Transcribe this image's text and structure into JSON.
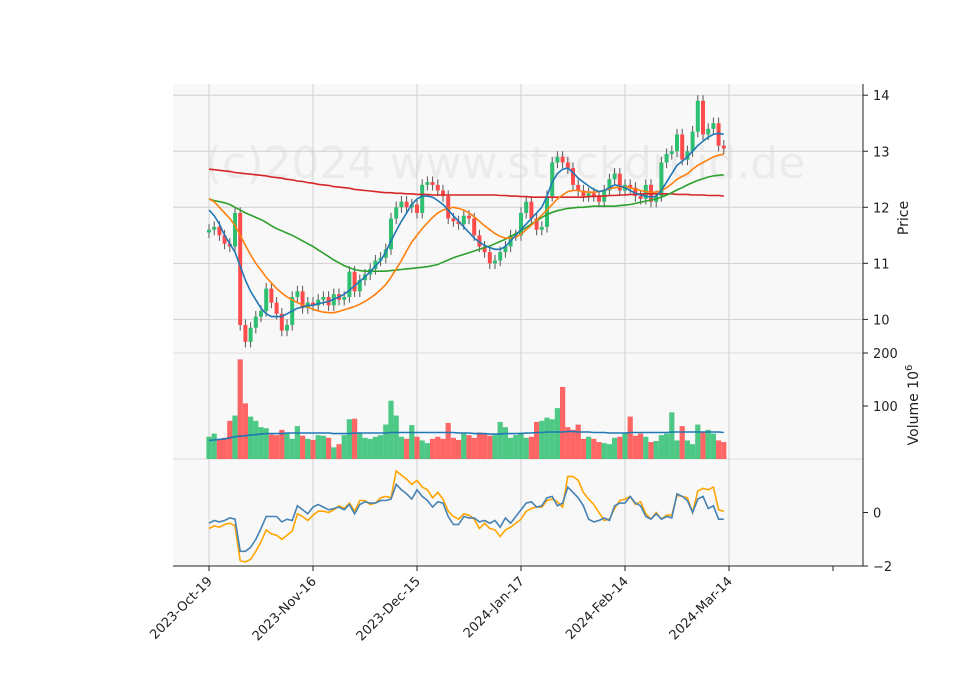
{
  "chart_data": {
    "type": "candlestick",
    "watermark": "(c)2024 www.stockdroid.de",
    "colors": {
      "up": "#2fbf71",
      "down": "#ff4b4b",
      "ma_short": "#1f77b4",
      "ma_mid": "#ff7f0e",
      "ma_long": "#2ca02c",
      "ma_200": "#d62728",
      "vol_ma": "#1f77b4",
      "osc_a": "#4682b4",
      "osc_b": "#ffa500",
      "panel_bg": "#f8f8f8",
      "grid": "#d0d0d0"
    },
    "x_tick_labels": [
      "2023-Oct-19",
      "2023-Nov-16",
      "2023-Dec-15",
      "2024-Jan-17",
      "2024-Feb-14",
      "2024-Mar-14"
    ],
    "x_tick_index": [
      0,
      20,
      40,
      60,
      80,
      100
    ],
    "price_panel": {
      "ylabel": "Price",
      "ylim": [
        9.4,
        14.2
      ],
      "yticks": [
        10,
        11,
        12,
        13,
        14
      ],
      "closes": [
        11.6,
        11.65,
        11.5,
        11.35,
        11.3,
        11.9,
        9.9,
        9.6,
        9.85,
        10.05,
        10.15,
        10.55,
        10.3,
        10.1,
        9.8,
        9.9,
        10.4,
        10.5,
        10.2,
        10.3,
        10.25,
        10.35,
        10.4,
        10.25,
        10.45,
        10.35,
        10.4,
        10.85,
        10.5,
        10.7,
        10.8,
        10.9,
        11.05,
        11.1,
        11.25,
        11.8,
        12.0,
        12.1,
        12.0,
        12.05,
        11.9,
        12.4,
        12.45,
        12.4,
        12.3,
        12.2,
        11.8,
        11.75,
        11.7,
        11.85,
        11.8,
        11.5,
        11.3,
        11.2,
        11.0,
        11.05,
        11.2,
        11.3,
        11.5,
        11.5,
        11.9,
        12.1,
        11.8,
        11.6,
        11.65,
        12.2,
        12.8,
        12.9,
        12.8,
        12.7,
        12.4,
        12.3,
        12.2,
        12.25,
        12.2,
        12.1,
        12.3,
        12.5,
        12.6,
        12.3,
        12.4,
        12.35,
        12.2,
        12.15,
        12.4,
        12.1,
        12.2,
        12.8,
        12.95,
        13.0,
        13.3,
        12.85,
        13.0,
        13.35,
        13.9,
        13.3,
        13.4,
        13.5,
        13.1,
        13.05
      ],
      "ma_short": [
        11.95,
        11.85,
        11.7,
        11.5,
        11.35,
        11.2,
        10.95,
        10.7,
        10.5,
        10.35,
        10.2,
        10.1,
        10.05,
        10.05,
        10.05,
        10.1,
        10.15,
        10.2,
        10.22,
        10.25,
        10.25,
        10.28,
        10.3,
        10.32,
        10.36,
        10.4,
        10.45,
        10.52,
        10.6,
        10.68,
        10.76,
        10.85,
        10.95,
        11.05,
        11.2,
        11.4,
        11.58,
        11.75,
        11.9,
        12.05,
        12.15,
        12.2,
        12.2,
        12.18,
        12.12,
        12.05,
        11.95,
        11.85,
        11.75,
        11.65,
        11.55,
        11.45,
        11.38,
        11.32,
        11.28,
        11.25,
        11.25,
        11.3,
        11.4,
        11.5,
        11.6,
        11.7,
        11.8,
        11.9,
        12.0,
        12.2,
        12.45,
        12.6,
        12.68,
        12.7,
        12.62,
        12.52,
        12.45,
        12.38,
        12.32,
        12.28,
        12.3,
        12.35,
        12.4,
        12.38,
        12.35,
        12.3,
        12.25,
        12.22,
        12.2,
        12.18,
        12.2,
        12.3,
        12.45,
        12.6,
        12.75,
        12.82,
        12.9,
        13.0,
        13.1,
        13.18,
        13.25,
        13.3,
        13.32,
        13.3
      ],
      "ma_mid": [
        12.15,
        12.1,
        12.0,
        11.9,
        11.8,
        11.68,
        11.5,
        11.32,
        11.15,
        11.0,
        10.88,
        10.75,
        10.65,
        10.55,
        10.47,
        10.4,
        10.35,
        10.3,
        10.26,
        10.22,
        10.18,
        10.15,
        10.13,
        10.12,
        10.12,
        10.14,
        10.17,
        10.2,
        10.23,
        10.27,
        10.32,
        10.38,
        10.45,
        10.53,
        10.62,
        10.75,
        10.9,
        11.05,
        11.22,
        11.38,
        11.5,
        11.62,
        11.72,
        11.82,
        11.9,
        11.95,
        11.98,
        12.0,
        11.98,
        11.95,
        11.9,
        11.83,
        11.75,
        11.67,
        11.6,
        11.53,
        11.48,
        11.45,
        11.45,
        11.47,
        11.52,
        11.6,
        11.68,
        11.77,
        11.86,
        11.95,
        12.05,
        12.15,
        12.22,
        12.28,
        12.3,
        12.3,
        12.28,
        12.27,
        12.27,
        12.28,
        12.3,
        12.33,
        12.35,
        12.36,
        12.36,
        12.35,
        12.32,
        12.3,
        12.28,
        12.27,
        12.27,
        12.3,
        12.35,
        12.42,
        12.5,
        12.55,
        12.6,
        12.68,
        12.75,
        12.8,
        12.85,
        12.9,
        12.93,
        12.95
      ],
      "ma_long": [
        12.15,
        12.12,
        12.1,
        12.08,
        12.05,
        12.0,
        11.95,
        11.9,
        11.86,
        11.82,
        11.78,
        11.73,
        11.67,
        11.62,
        11.58,
        11.54,
        11.5,
        11.45,
        11.4,
        11.35,
        11.3,
        11.24,
        11.18,
        11.12,
        11.06,
        11.01,
        10.96,
        10.92,
        10.89,
        10.87,
        10.86,
        10.86,
        10.86,
        10.86,
        10.86,
        10.87,
        10.88,
        10.89,
        10.9,
        10.91,
        10.92,
        10.93,
        10.94,
        10.96,
        10.98,
        11.02,
        11.06,
        11.1,
        11.13,
        11.16,
        11.19,
        11.22,
        11.25,
        11.28,
        11.31,
        11.35,
        11.39,
        11.43,
        11.48,
        11.53,
        11.58,
        11.64,
        11.7,
        11.76,
        11.82,
        11.87,
        11.91,
        11.94,
        11.96,
        11.98,
        11.99,
        12.0,
        12.0,
        12.01,
        12.02,
        12.02,
        12.02,
        12.02,
        12.02,
        12.03,
        12.04,
        12.05,
        12.07,
        12.09,
        12.11,
        12.13,
        12.15,
        12.18,
        12.22,
        12.26,
        12.31,
        12.35,
        12.4,
        12.44,
        12.48,
        12.51,
        12.54,
        12.56,
        12.57,
        12.58
      ],
      "ma_200": [
        12.68,
        12.67,
        12.66,
        12.65,
        12.64,
        12.62,
        12.61,
        12.6,
        12.59,
        12.58,
        12.57,
        12.56,
        12.54,
        12.53,
        12.52,
        12.5,
        12.49,
        12.47,
        12.46,
        12.44,
        12.43,
        12.41,
        12.4,
        12.39,
        12.37,
        12.36,
        12.35,
        12.34,
        12.32,
        12.31,
        12.3,
        12.29,
        12.28,
        12.27,
        12.26,
        12.26,
        12.25,
        12.25,
        12.24,
        12.24,
        12.23,
        12.23,
        12.23,
        12.22,
        12.22,
        12.22,
        12.22,
        12.22,
        12.22,
        12.22,
        12.22,
        12.22,
        12.22,
        12.22,
        12.22,
        12.22,
        12.21,
        12.21,
        12.2,
        12.2,
        12.19,
        12.19,
        12.18,
        12.18,
        12.18,
        12.18,
        12.18,
        12.18,
        12.18,
        12.18,
        12.18,
        12.18,
        12.18,
        12.19,
        12.19,
        12.2,
        12.2,
        12.21,
        12.21,
        12.22,
        12.22,
        12.23,
        12.23,
        12.24,
        12.24,
        12.24,
        12.24,
        12.24,
        12.24,
        12.24,
        12.23,
        12.23,
        12.23,
        12.22,
        12.22,
        12.22,
        12.21,
        12.21,
        12.21,
        12.2
      ]
    },
    "volume_panel": {
      "ylabel": "Volume  10^6",
      "ylim": [
        0,
        200
      ],
      "yticks": [
        100,
        200
      ],
      "values": [
        42,
        48,
        38,
        40,
        72,
        82,
        188,
        105,
        80,
        72,
        60,
        58,
        46,
        45,
        55,
        48,
        38,
        62,
        44,
        38,
        36,
        45,
        44,
        40,
        22,
        28,
        45,
        75,
        76,
        50,
        40,
        38,
        42,
        45,
        65,
        110,
        82,
        42,
        38,
        64,
        42,
        35,
        30,
        38,
        42,
        38,
        68,
        40,
        36,
        48,
        45,
        40,
        50,
        48,
        44,
        45,
        70,
        60,
        40,
        45,
        50,
        40,
        42,
        70,
        72,
        78,
        75,
        96,
        136,
        60,
        55,
        65,
        38,
        42,
        38,
        32,
        30,
        28,
        40,
        42,
        48,
        80,
        44,
        48,
        42,
        32,
        34,
        45,
        48,
        88,
        35,
        62,
        35,
        28,
        65,
        50,
        55,
        48,
        35,
        32
      ],
      "ma": [
        35,
        36,
        37,
        38,
        40,
        42,
        43,
        44,
        45,
        46,
        47,
        48,
        48,
        48,
        48,
        49,
        49,
        49,
        49,
        49,
        49,
        49,
        49,
        49,
        48,
        48,
        48,
        48,
        49,
        49,
        49,
        49,
        49,
        49,
        49,
        50,
        50,
        50,
        50,
        50,
        50,
        50,
        50,
        50,
        50,
        50,
        50,
        50,
        49,
        49,
        49,
        48,
        48,
        48,
        47,
        47,
        47,
        48,
        48,
        48,
        48,
        49,
        49,
        50,
        50,
        51,
        51,
        51,
        51,
        52,
        52,
        51,
        51,
        51,
        50,
        50,
        50,
        49,
        49,
        49,
        49,
        50,
        50,
        50,
        50,
        50,
        50,
        50,
        50,
        51,
        51,
        51,
        51,
        51,
        51,
        51,
        51,
        51,
        51,
        50
      ]
    },
    "oscillator_panel": {
      "ylim": [
        -2,
        2
      ],
      "yticks": [
        -2,
        0
      ],
      "series_a": [
        -0.4,
        -0.3,
        -0.35,
        -0.3,
        -0.2,
        -0.25,
        -1.45,
        -1.45,
        -1.3,
        -1.0,
        -0.6,
        -0.15,
        -0.15,
        -0.15,
        -0.35,
        -0.25,
        -0.3,
        0.25,
        0.1,
        -0.05,
        0.2,
        0.3,
        0.2,
        0.1,
        0.15,
        0.2,
        0.1,
        0.3,
        -0.05,
        0.3,
        0.4,
        0.35,
        0.35,
        0.45,
        0.45,
        0.5,
        1.05,
        0.85,
        0.7,
        0.5,
        0.85,
        0.6,
        0.45,
        0.2,
        0.4,
        0.35,
        -0.15,
        -0.45,
        -0.45,
        -0.15,
        -0.2,
        -0.2,
        -0.35,
        -0.3,
        -0.4,
        -0.3,
        -0.55,
        -0.2,
        -0.4,
        -0.15,
        0.1,
        0.35,
        0.4,
        0.2,
        0.25,
        0.55,
        0.6,
        0.25,
        0.35,
        0.95,
        0.75,
        0.55,
        0.25,
        -0.25,
        -0.35,
        -0.3,
        -0.2,
        -0.3,
        0.25,
        0.35,
        0.35,
        0.6,
        0.35,
        0.25,
        -0.15,
        -0.25,
        -0.05,
        -0.25,
        -0.15,
        -0.2,
        0.7,
        0.6,
        0.45,
        0.0,
        0.5,
        0.6,
        0.15,
        0.25,
        -0.25,
        -0.25
      ],
      "series_b": [
        -0.6,
        -0.5,
        -0.55,
        -0.45,
        -0.4,
        -0.5,
        -1.8,
        -1.85,
        -1.75,
        -1.45,
        -1.1,
        -0.65,
        -0.8,
        -0.85,
        -1.0,
        -0.85,
        -0.7,
        -0.05,
        -0.15,
        -0.3,
        -0.1,
        0.05,
        0.05,
        0.0,
        0.1,
        0.25,
        0.15,
        0.35,
        0.05,
        0.45,
        0.45,
        0.3,
        0.35,
        0.55,
        0.6,
        0.55,
        1.55,
        1.4,
        1.25,
        1.05,
        1.2,
        0.95,
        0.85,
        0.55,
        0.75,
        0.5,
        0.05,
        -0.15,
        -0.25,
        -0.05,
        -0.1,
        -0.25,
        -0.6,
        -0.4,
        -0.6,
        -0.65,
        -0.9,
        -0.65,
        -0.55,
        -0.4,
        -0.25,
        0.05,
        0.15,
        0.2,
        0.2,
        0.45,
        0.5,
        0.4,
        0.2,
        1.35,
        1.35,
        1.2,
        0.75,
        0.5,
        0.3,
        0.0,
        -0.3,
        -0.25,
        0.15,
        0.45,
        0.5,
        0.6,
        0.3,
        0.4,
        -0.05,
        -0.25,
        0.0,
        -0.25,
        -0.1,
        -0.1,
        0.65,
        0.6,
        0.55,
        0.0,
        0.8,
        0.9,
        0.85,
        0.95,
        0.1,
        0.05
      ]
    }
  }
}
